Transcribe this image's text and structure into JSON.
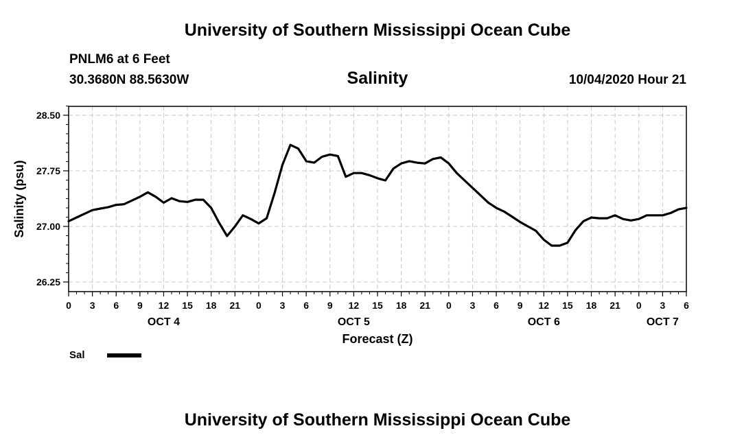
{
  "header": {
    "title_top": "University of Southern Mississippi Ocean Cube",
    "station": "PNLM6 at 6 Feet",
    "coords": "30.3680N 88.5630W",
    "chart_title": "Salinity",
    "datetime": "10/04/2020 Hour 21",
    "title_bottom": "University of Southern Mississippi Ocean Cube"
  },
  "legend": {
    "label": "Sal",
    "color": "#000000"
  },
  "chart_data": {
    "type": "line",
    "title": "Salinity",
    "xlabel": "Forecast (Z)",
    "ylabel": "Salinity (psu)",
    "x_unit": "hours since OCT 4 00Z",
    "xlim": [
      0,
      78
    ],
    "ylim": [
      26.12,
      28.62
    ],
    "grid": true,
    "y_ticks": [
      {
        "value": 26.25,
        "label": "26.25"
      },
      {
        "value": 27.0,
        "label": "27.00"
      },
      {
        "value": 27.75,
        "label": "27.75"
      },
      {
        "value": 28.5,
        "label": "28.50"
      }
    ],
    "y_minor_ticks": [
      26.375,
      26.5,
      26.625,
      26.75,
      26.875,
      27.125,
      27.25,
      27.375,
      27.5,
      27.625,
      27.875,
      28.0,
      28.125,
      28.25,
      28.375,
      28.625
    ],
    "x_ticks": [
      {
        "value": 0,
        "label": "0"
      },
      {
        "value": 3,
        "label": "3"
      },
      {
        "value": 6,
        "label": "6"
      },
      {
        "value": 9,
        "label": "9"
      },
      {
        "value": 12,
        "label": "12"
      },
      {
        "value": 15,
        "label": "15"
      },
      {
        "value": 18,
        "label": "18"
      },
      {
        "value": 21,
        "label": "21"
      },
      {
        "value": 24,
        "label": "0"
      },
      {
        "value": 27,
        "label": "3"
      },
      {
        "value": 30,
        "label": "6"
      },
      {
        "value": 33,
        "label": "9"
      },
      {
        "value": 36,
        "label": "12"
      },
      {
        "value": 39,
        "label": "15"
      },
      {
        "value": 42,
        "label": "18"
      },
      {
        "value": 45,
        "label": "21"
      },
      {
        "value": 48,
        "label": "0"
      },
      {
        "value": 51,
        "label": "3"
      },
      {
        "value": 54,
        "label": "6"
      },
      {
        "value": 57,
        "label": "9"
      },
      {
        "value": 60,
        "label": "12"
      },
      {
        "value": 63,
        "label": "15"
      },
      {
        "value": 66,
        "label": "18"
      },
      {
        "value": 69,
        "label": "21"
      },
      {
        "value": 72,
        "label": "0"
      },
      {
        "value": 75,
        "label": "3"
      },
      {
        "value": 78,
        "label": "6"
      }
    ],
    "day_labels": [
      {
        "value": 12,
        "label": "OCT 4"
      },
      {
        "value": 36,
        "label": "OCT 5"
      },
      {
        "value": 60,
        "label": "OCT 6"
      },
      {
        "value": 75,
        "label": "OCT 7"
      }
    ],
    "series": [
      {
        "name": "Sal",
        "x": [
          0,
          1,
          2,
          3,
          4,
          5,
          6,
          7,
          8,
          9,
          10,
          11,
          12,
          13,
          14,
          15,
          16,
          17,
          18,
          19,
          20,
          21,
          22,
          23,
          24,
          25,
          26,
          27,
          28,
          29,
          30,
          31,
          32,
          33,
          34,
          35,
          36,
          37,
          38,
          39,
          40,
          41,
          42,
          43,
          44,
          45,
          46,
          47,
          48,
          49,
          50,
          51,
          52,
          53,
          54,
          55,
          56,
          57,
          58,
          59,
          60,
          61,
          62,
          63,
          64,
          65,
          66,
          67,
          68,
          69,
          70,
          71,
          72,
          73,
          74,
          75,
          76,
          77,
          78
        ],
        "values": [
          27.07,
          27.12,
          27.17,
          27.22,
          27.24,
          27.26,
          27.29,
          27.3,
          27.35,
          27.4,
          27.46,
          27.4,
          27.32,
          27.38,
          27.34,
          27.33,
          27.36,
          27.36,
          27.25,
          27.05,
          26.87,
          27.0,
          27.15,
          27.1,
          27.04,
          27.11,
          27.45,
          27.83,
          28.1,
          28.05,
          27.88,
          27.86,
          27.94,
          27.97,
          27.95,
          27.67,
          27.72,
          27.72,
          27.69,
          27.65,
          27.62,
          27.78,
          27.85,
          27.88,
          27.86,
          27.85,
          27.91,
          27.93,
          27.85,
          27.72,
          27.62,
          27.52,
          27.42,
          27.32,
          27.25,
          27.2,
          27.13,
          27.06,
          27.0,
          26.94,
          26.82,
          26.74,
          26.74,
          26.78,
          26.95,
          27.07,
          27.12,
          27.11,
          27.11,
          27.15,
          27.1,
          27.08,
          27.1,
          27.15,
          27.15,
          27.15,
          27.18,
          27.23,
          27.25
        ]
      }
    ]
  }
}
